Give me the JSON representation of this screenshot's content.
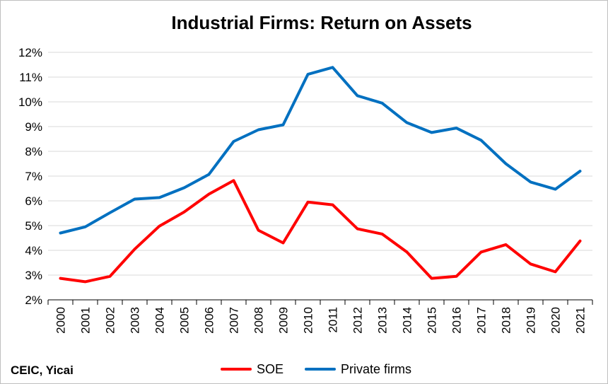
{
  "chart_data": {
    "type": "line",
    "title": "Industrial Firms: Return on Assets",
    "xlabel": "",
    "ylabel": "",
    "ylim": [
      0.02,
      0.12
    ],
    "y_ticks": [
      "2%",
      "3%",
      "4%",
      "5%",
      "6%",
      "7%",
      "8%",
      "9%",
      "10%",
      "11%",
      "12%"
    ],
    "grid": true,
    "legend_position": "bottom-center",
    "categories": [
      "2000",
      "2001",
      "2002",
      "2003",
      "2004",
      "2005",
      "2006",
      "2007",
      "2008",
      "2009",
      "2010",
      "2011",
      "2012",
      "2013",
      "2014",
      "2015",
      "2016",
      "2017",
      "2018",
      "2019",
      "2020",
      "2021"
    ],
    "series": [
      {
        "name": "SOE",
        "color": "#ff0000",
        "values": [
          0.0287,
          0.0273,
          0.0295,
          0.0405,
          0.0498,
          0.0555,
          0.0627,
          0.0682,
          0.0481,
          0.043,
          0.0595,
          0.0584,
          0.0487,
          0.0466,
          0.0393,
          0.0287,
          0.0295,
          0.0393,
          0.0423,
          0.0345,
          0.0313,
          0.0438
        ]
      },
      {
        "name": "Private firms",
        "color": "#0070c0",
        "values": [
          0.047,
          0.0495,
          0.0552,
          0.0607,
          0.0613,
          0.0653,
          0.0707,
          0.084,
          0.0887,
          0.0907,
          0.1111,
          0.1139,
          0.1025,
          0.0995,
          0.0916,
          0.0876,
          0.0894,
          0.0845,
          0.075,
          0.0676,
          0.0647,
          0.072
        ]
      }
    ]
  },
  "source": "CEIC, Yicai"
}
